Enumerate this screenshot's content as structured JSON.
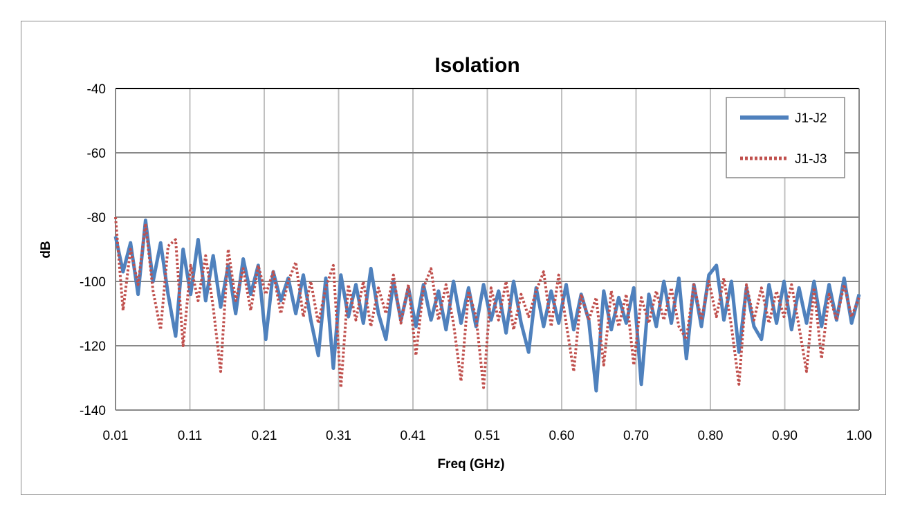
{
  "chart_data": {
    "type": "line",
    "title": "Isolation",
    "xlabel": "Freq (GHz)",
    "ylabel": "dB",
    "xlim": [
      0.01,
      1.0
    ],
    "ylim": [
      -140,
      -40
    ],
    "x_tick_labels": [
      "0.01",
      "0.11",
      "0.21",
      "0.31",
      "0.41",
      "0.51",
      "0.60",
      "0.70",
      "0.80",
      "0.90",
      "1.00"
    ],
    "y_ticks": [
      -40,
      -60,
      -80,
      -100,
      -120,
      -140
    ],
    "grid": true,
    "legend_position": "top-right",
    "x": [
      0.01,
      0.02,
      0.03,
      0.04,
      0.05,
      0.06,
      0.07,
      0.08,
      0.09,
      0.1,
      0.11,
      0.12,
      0.13,
      0.14,
      0.15,
      0.16,
      0.17,
      0.18,
      0.19,
      0.2,
      0.21,
      0.22,
      0.23,
      0.24,
      0.25,
      0.26,
      0.27,
      0.28,
      0.29,
      0.3,
      0.31,
      0.32,
      0.33,
      0.34,
      0.35,
      0.36,
      0.37,
      0.38,
      0.39,
      0.4,
      0.41,
      0.42,
      0.43,
      0.44,
      0.45,
      0.46,
      0.47,
      0.48,
      0.49,
      0.5,
      0.51,
      0.52,
      0.53,
      0.54,
      0.55,
      0.56,
      0.57,
      0.58,
      0.59,
      0.6,
      0.61,
      0.62,
      0.63,
      0.64,
      0.65,
      0.66,
      0.67,
      0.68,
      0.69,
      0.7,
      0.71,
      0.72,
      0.73,
      0.74,
      0.75,
      0.76,
      0.77,
      0.78,
      0.79,
      0.8,
      0.81,
      0.82,
      0.83,
      0.84,
      0.85,
      0.86,
      0.87,
      0.88,
      0.89,
      0.9,
      0.91,
      0.92,
      0.93,
      0.94,
      0.95,
      0.96,
      0.97,
      0.98,
      0.99,
      1.0
    ],
    "series": [
      {
        "name": "J1-J2",
        "color": "#4f81bd",
        "style": "solid",
        "values": [
          -86,
          -97,
          -88,
          -104,
          -81,
          -100,
          -88,
          -104,
          -117,
          -90,
          -104,
          -87,
          -106,
          -92,
          -108,
          -95,
          -110,
          -93,
          -104,
          -95,
          -118,
          -97,
          -106,
          -99,
          -110,
          -98,
          -112,
          -123,
          -99,
          -127,
          -98,
          -111,
          -101,
          -113,
          -96,
          -110,
          -118,
          -100,
          -112,
          -102,
          -114,
          -101,
          -112,
          -103,
          -115,
          -100,
          -113,
          -102,
          -114,
          -101,
          -112,
          -103,
          -116,
          -100,
          -113,
          -122,
          -102,
          -114,
          -103,
          -113,
          -101,
          -115,
          -104,
          -112,
          -134,
          -103,
          -115,
          -105,
          -113,
          -102,
          -132,
          -104,
          -114,
          -100,
          -113,
          -99,
          -124,
          -101,
          -114,
          -98,
          -95,
          -112,
          -100,
          -122,
          -102,
          -114,
          -118,
          -101,
          -113,
          -100,
          -115,
          -102,
          -113,
          -100,
          -114,
          -101,
          -112,
          -99,
          -113,
          -104
        ]
      },
      {
        "name": "J1-J3",
        "color": "#c0504d",
        "style": "dotted",
        "values": [
          -80,
          -109,
          -90,
          -101,
          -82,
          -103,
          -115,
          -89,
          -87,
          -120,
          -95,
          -106,
          -92,
          -108,
          -128,
          -90,
          -106,
          -96,
          -109,
          -95,
          -104,
          -97,
          -110,
          -100,
          -94,
          -111,
          -100,
          -113,
          -102,
          -95,
          -133,
          -101,
          -112,
          -100,
          -114,
          -102,
          -110,
          -98,
          -113,
          -101,
          -123,
          -102,
          -96,
          -112,
          -101,
          -113,
          -131,
          -103,
          -111,
          -133,
          -102,
          -112,
          -100,
          -115,
          -104,
          -111,
          -103,
          -97,
          -114,
          -98,
          -113,
          -128,
          -104,
          -112,
          -105,
          -126,
          -103,
          -114,
          -104,
          -126,
          -105,
          -113,
          -103,
          -112,
          -102,
          -114,
          -118,
          -101,
          -112,
          -100,
          -111,
          -99,
          -114,
          -132,
          -101,
          -112,
          -102,
          -113,
          -103,
          -111,
          -101,
          -114,
          -128,
          -102,
          -124,
          -104,
          -112,
          -101,
          -111,
          -105
        ]
      }
    ]
  }
}
